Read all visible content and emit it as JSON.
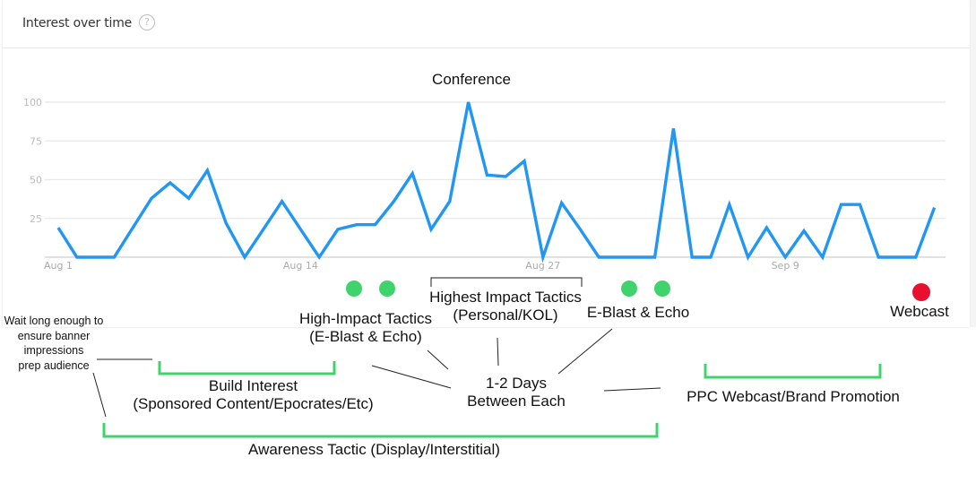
{
  "card": {
    "title": "Interest over time",
    "help_icon": "question-circle-icon",
    "help_glyph": "?"
  },
  "chart_data": {
    "type": "line",
    "title": "Interest over time",
    "xlabel": "",
    "ylabel": "",
    "ylim": [
      0,
      100
    ],
    "yticks": [
      25,
      50,
      75,
      100
    ],
    "xtick_labels": [
      {
        "label": "Aug 1",
        "index": 0
      },
      {
        "label": "Aug 14",
        "index": 13
      },
      {
        "label": "Aug 27",
        "index": 26
      },
      {
        "label": "Sep 9",
        "index": 39
      }
    ],
    "grid": true,
    "legend": "none",
    "x": [
      "Aug 1",
      "Aug 2",
      "Aug 3",
      "Aug 4",
      "Aug 5",
      "Aug 6",
      "Aug 7",
      "Aug 8",
      "Aug 9",
      "Aug 10",
      "Aug 11",
      "Aug 12",
      "Aug 13",
      "Aug 14",
      "Aug 15",
      "Aug 16",
      "Aug 17",
      "Aug 18",
      "Aug 19",
      "Aug 20",
      "Aug 21",
      "Aug 22",
      "Aug 23",
      "Aug 24",
      "Aug 25",
      "Aug 26",
      "Aug 27",
      "Aug 28",
      "Aug 29",
      "Aug 30",
      "Aug 31",
      "Sep 1",
      "Sep 2",
      "Sep 3",
      "Sep 4",
      "Sep 5",
      "Sep 6",
      "Sep 7",
      "Sep 8",
      "Sep 9",
      "Sep 10",
      "Sep 11",
      "Sep 12",
      "Sep 13",
      "Sep 14",
      "Sep 15",
      "Sep 16",
      "Sep 17"
    ],
    "series": [
      {
        "name": "Interest",
        "color": "#2196f3",
        "values": [
          19,
          0,
          0,
          0,
          19,
          38,
          48,
          38,
          56,
          22,
          0,
          18,
          36,
          18,
          0,
          18,
          21,
          21,
          36,
          54,
          18,
          36,
          100,
          53,
          52,
          62,
          0,
          35,
          18,
          0,
          0,
          0,
          0,
          83,
          0,
          0,
          34,
          0,
          19,
          0,
          17,
          0,
          34,
          34,
          0,
          0,
          0,
          32
        ]
      }
    ],
    "annotations": [
      {
        "text": "Conference",
        "type": "label"
      },
      {
        "text": "High-Impact Tactics (E-Blast & Echo)",
        "marker": "two-green-dots"
      },
      {
        "text": "Highest Impact Tactics (Personal/KOL)",
        "marker": "bracket"
      },
      {
        "text": "E-Blast & Echo",
        "marker": "two-green-dots"
      },
      {
        "text": "Webcast",
        "marker": "red-dot"
      },
      {
        "text": "1-2 Days Between Each",
        "type": "callout"
      },
      {
        "text": "Wait long enough to ensure banner impressions prep audience",
        "type": "callout"
      },
      {
        "text": "Build Interest (Sponsored Content/Epocrates/Etc)",
        "marker": "green-bracket"
      },
      {
        "text": "PPC Webcast/Brand Promotion",
        "marker": "green-bracket"
      },
      {
        "text": "Awareness Tactic (Display/Interstitial)",
        "marker": "green-bracket"
      }
    ]
  },
  "annotations": {
    "conference": "Conference",
    "high_impact_line1": "High-Impact Tactics",
    "high_impact_line2": "(E-Blast & Echo)",
    "highest_impact_line1": "Highest Impact Tactics",
    "highest_impact_line2": "(Personal/KOL)",
    "eblast_echo": "E-Blast & Echo",
    "webcast": "Webcast",
    "days_line1": "1-2 Days",
    "days_line2": "Between Each",
    "wait_line1": "Wait long enough to",
    "wait_line2": "ensure banner",
    "wait_line3": "impressions",
    "wait_line4": "prep audience",
    "build_line1": "Build Interest",
    "build_line2": "(Sponsored Content/Epocrates/Etc)",
    "ppc": "PPC Webcast/Brand Promotion",
    "awareness": "Awareness Tactic (Display/Interstitial)"
  },
  "colors": {
    "line": "#2196f3",
    "grid": "#e8e8e8",
    "green": "#3fd46b",
    "red": "#e8102e",
    "callout": "#222222"
  }
}
